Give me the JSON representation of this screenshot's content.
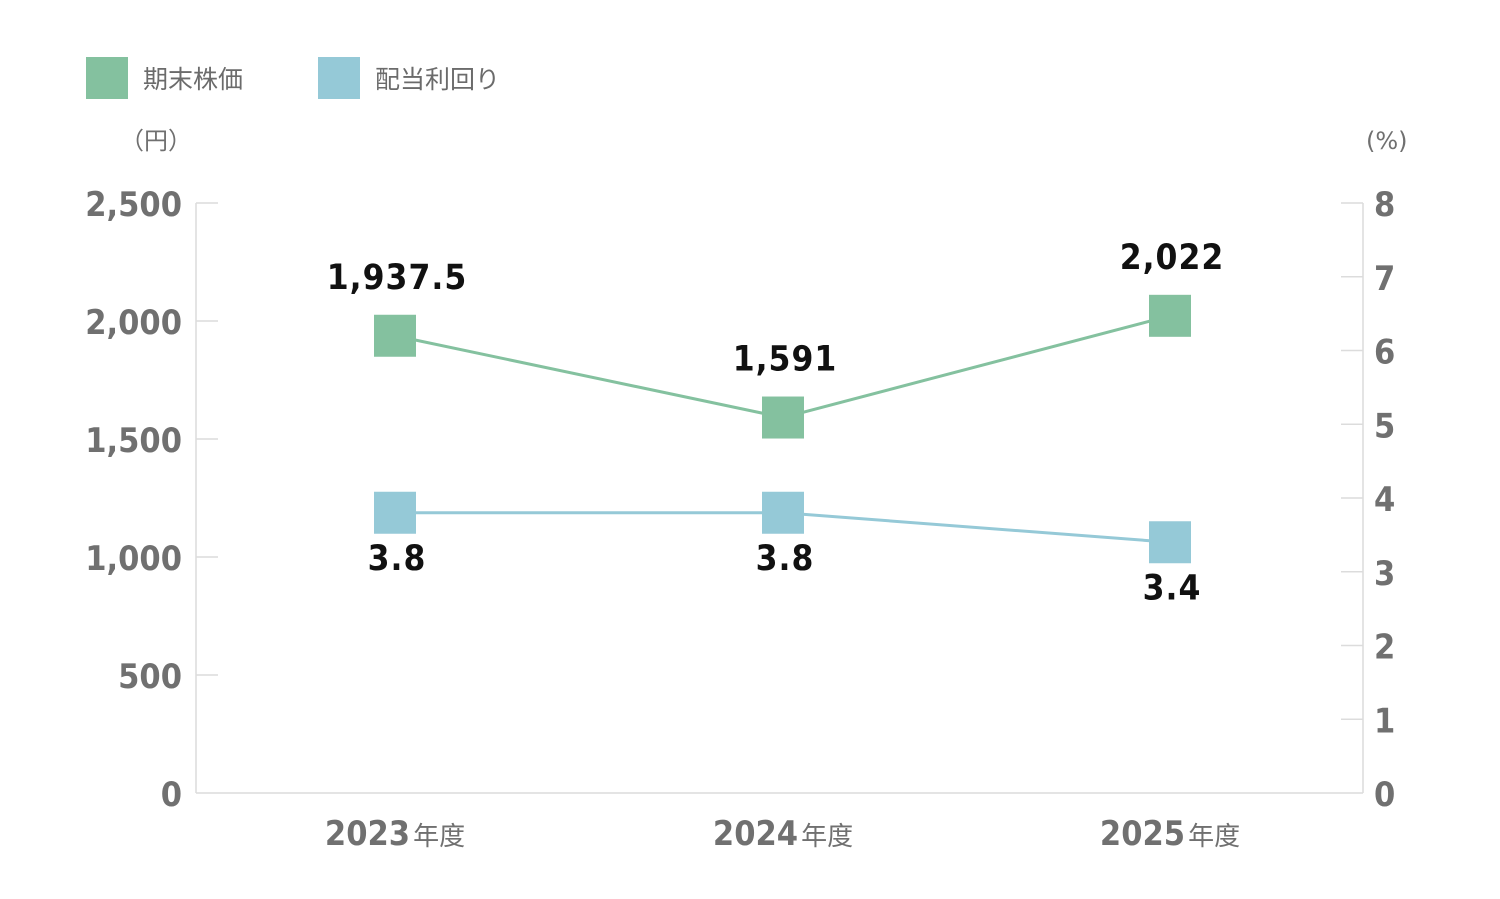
{
  "chart_data": {
    "type": "line",
    "categories": [
      "2023",
      "2024",
      "2025"
    ],
    "category_suffix": "年度",
    "y_left": {
      "label": "（円）",
      "ylim": [
        0,
        2500
      ],
      "ticks": [
        0,
        500,
        1000,
        1500,
        2000,
        2500
      ],
      "tick_labels": [
        "0",
        "500",
        "1,000",
        "1,500",
        "2,000",
        "2,500"
      ]
    },
    "y_right": {
      "label": "(%)",
      "ylim": [
        0,
        8
      ],
      "ticks": [
        0,
        1,
        2,
        3,
        4,
        5,
        6,
        7,
        8
      ],
      "tick_labels": [
        "0",
        "1",
        "2",
        "3",
        "4",
        "5",
        "6",
        "7",
        "8"
      ]
    },
    "series": [
      {
        "name": "期末株価",
        "axis": "left",
        "color": "#84c19f",
        "marker": "square",
        "values": [
          1937.5,
          1591,
          2022
        ],
        "labels": [
          "1,937.5",
          "1,591",
          "2,022"
        ],
        "label_position": "above"
      },
      {
        "name": "配当利回り",
        "axis": "right",
        "color": "#95c9d7",
        "marker": "square",
        "values": [
          3.8,
          3.8,
          3.4
        ],
        "labels": [
          "3.8",
          "3.8",
          "3.4"
        ],
        "label_position": "below"
      }
    ],
    "legend": "top-left",
    "grid": false
  }
}
